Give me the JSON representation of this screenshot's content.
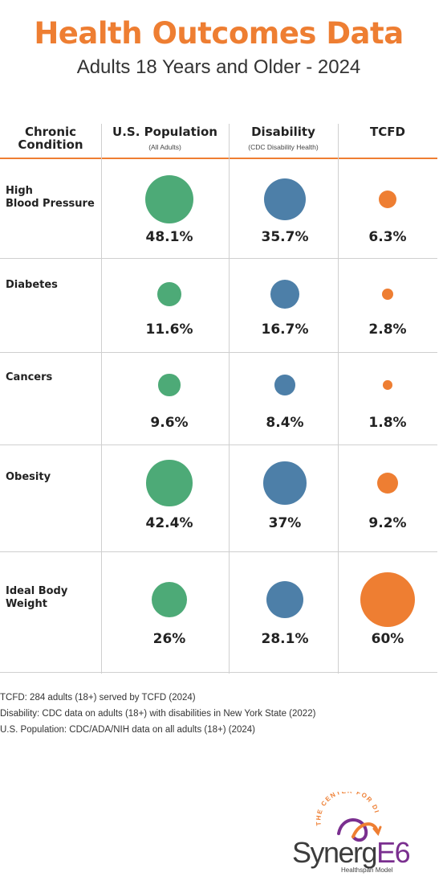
{
  "title": "Health Outcomes Data",
  "subtitle": "Adults 18 Years and Older - 2024",
  "colors": {
    "us_population": "#4daa77",
    "disability": "#4d7fa8",
    "tcfd": "#ee7e32",
    "title": "#ee7e32",
    "logo_purple": "#7a2f8f"
  },
  "chart_data": {
    "type": "table",
    "columns": [
      {
        "key": "condition",
        "label": "Chronic Condition",
        "note": ""
      },
      {
        "key": "us_population",
        "label": "U.S. Population",
        "note": "(All Adults)"
      },
      {
        "key": "disability",
        "label": "Disability",
        "note": "(CDC Disability Health)"
      },
      {
        "key": "tcfd",
        "label": "TCFD",
        "note": ""
      }
    ],
    "encoding": "circle area proportional to percentage",
    "rows": [
      {
        "condition": "High Blood Pressure",
        "us_population": 48.1,
        "disability": 35.7,
        "tcfd": 6.3,
        "labels": {
          "us_population": "48.1%",
          "disability": "35.7%",
          "tcfd": "6.3%"
        }
      },
      {
        "condition": "Diabetes",
        "us_population": 11.6,
        "disability": 16.7,
        "tcfd": 2.8,
        "labels": {
          "us_population": "11.6%",
          "disability": "16.7%",
          "tcfd": "2.8%"
        }
      },
      {
        "condition": "Cancers",
        "us_population": 9.6,
        "disability": 8.4,
        "tcfd": 1.8,
        "labels": {
          "us_population": "9.6%",
          "disability": "8.4%",
          "tcfd": "1.8%"
        }
      },
      {
        "condition": "Obesity",
        "us_population": 42.4,
        "disability": 37,
        "tcfd": 9.2,
        "labels": {
          "us_population": "42.4%",
          "disability": "37%",
          "tcfd": "9.2%"
        }
      },
      {
        "condition": "Ideal Body Weight",
        "us_population": 26,
        "disability": 28.1,
        "tcfd": 60,
        "labels": {
          "us_population": "26%",
          "disability": "28.1%",
          "tcfd": "60%"
        }
      }
    ]
  },
  "header": {
    "condition_line1": "Chronic",
    "condition_line2": "Condition",
    "us_label": "U.S. Population",
    "us_note": "(All Adults)",
    "dis_label": "Disability",
    "dis_note": "(CDC Disability Health)",
    "tcfd_label": "TCFD"
  },
  "row_labels": [
    {
      "line1": "High",
      "line2": "Blood Pressure"
    },
    {
      "line1": "Diabetes",
      "line2": ""
    },
    {
      "line1": "Cancers",
      "line2": ""
    },
    {
      "line1": "Obesity",
      "line2": ""
    },
    {
      "line1": "Ideal Body",
      "line2": "Weight"
    }
  ],
  "footnotes": [
    "TCFD: 284 adults (18+) served by TCFD (2024)",
    "Disability: CDC data on adults (18+) with disabilities in New York State (2022)",
    "U.S. Population: CDC/ADA/NIH data on all adults (18+) (2024)"
  ],
  "logo": {
    "arc_text": "THE CENTER FOR DISCOVERY",
    "wordmark_main": "Synerg",
    "wordmark_accent": "E6",
    "tagline": "Healthspan Model"
  }
}
